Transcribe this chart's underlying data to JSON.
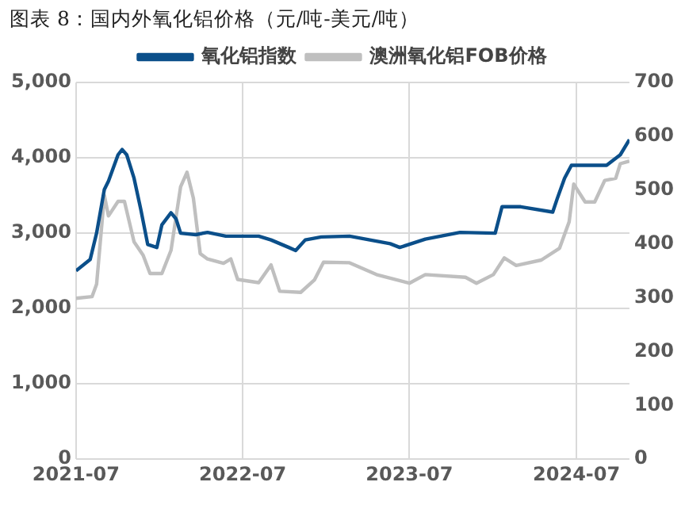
{
  "chart_data": {
    "type": "line",
    "title": "图表 8：国内外氧化铝价格（元/吨-美元/吨）",
    "series": [
      {
        "name": "氧化铝指数",
        "color": "#0b4f8a",
        "x": [
          "2021-07-01",
          "2021-08-01",
          "2021-08-15",
          "2021-09-01",
          "2021-09-10",
          "2021-10-01",
          "2021-10-10",
          "2021-10-20",
          "2021-11-05",
          "2021-11-20",
          "2021-12-05",
          "2021-12-25",
          "2022-01-05",
          "2022-01-25",
          "2022-02-05",
          "2022-02-15",
          "2022-03-20",
          "2022-04-15",
          "2022-05-25",
          "2022-08-05",
          "2022-09-01",
          "2022-10-10",
          "2022-10-25",
          "2022-11-15",
          "2022-12-20",
          "2023-02-20",
          "2023-05-20",
          "2023-06-10",
          "2023-08-05",
          "2023-10-20",
          "2024-01-05",
          "2024-01-20",
          "2024-03-01",
          "2024-05-10",
          "2024-05-20",
          "2024-06-05",
          "2024-06-20",
          "2024-09-05",
          "2024-10-05",
          "2024-10-25"
        ],
        "values": [
          2500,
          2650,
          3000,
          3580,
          3690,
          4040,
          4110,
          4040,
          3730,
          3310,
          2850,
          2810,
          3110,
          3270,
          3190,
          3000,
          2980,
          3010,
          2960,
          2960,
          2910,
          2810,
          2770,
          2910,
          2950,
          2960,
          2860,
          2810,
          2920,
          3010,
          3000,
          3350,
          3350,
          3280,
          3460,
          3730,
          3900,
          3900,
          4040,
          4240
        ]
      },
      {
        "name": "澳洲氧化铝FOB价格",
        "color": "#bfbfbf",
        "axis": "y2",
        "x": [
          "2021-07-01",
          "2021-08-05",
          "2021-08-15",
          "2021-09-01",
          "2021-09-10",
          "2021-10-01",
          "2021-10-15",
          "2021-11-05",
          "2021-11-25",
          "2021-12-10",
          "2022-01-05",
          "2022-01-25",
          "2022-02-15",
          "2022-03-01",
          "2022-03-15",
          "2022-03-30",
          "2022-04-15",
          "2022-05-20",
          "2022-06-05",
          "2022-06-20",
          "2022-08-05",
          "2022-09-01",
          "2022-09-20",
          "2022-11-05",
          "2022-12-05",
          "2022-12-25",
          "2023-02-20",
          "2023-04-20",
          "2023-07-01",
          "2023-08-05",
          "2023-11-01",
          "2023-11-25",
          "2024-01-01",
          "2024-01-25",
          "2024-02-20",
          "2024-04-15",
          "2024-05-25",
          "2024-06-15",
          "2024-06-25",
          "2024-07-20",
          "2024-08-10",
          "2024-09-01",
          "2024-09-25",
          "2024-10-05",
          "2024-10-25"
        ],
        "values": [
          299,
          302,
          325,
          490,
          452,
          479,
          479,
          404,
          379,
          345,
          345,
          388,
          506,
          533,
          485,
          382,
          372,
          364,
          372,
          334,
          328,
          361,
          312,
          310,
          333,
          366,
          365,
          343,
          327,
          343,
          338,
          327,
          343,
          374,
          360,
          370,
          392,
          441,
          511,
          478,
          478,
          518,
          522,
          549,
          554
        ]
      }
    ],
    "xlim": [
      "2021-07-01",
      "2024-10-25"
    ],
    "xticks": [
      {
        "value": "2021-07-01",
        "label": "2021-07"
      },
      {
        "value": "2022-07-01",
        "label": "2022-07"
      },
      {
        "value": "2023-07-01",
        "label": "2023-07"
      },
      {
        "value": "2024-07-01",
        "label": "2024-07"
      }
    ],
    "ylim": [
      0,
      5000
    ],
    "yticks": [
      {
        "value": 0,
        "label": "0"
      },
      {
        "value": 1000,
        "label": "1,000"
      },
      {
        "value": 2000,
        "label": "2,000"
      },
      {
        "value": 3000,
        "label": "3,000"
      },
      {
        "value": 4000,
        "label": "4,000"
      },
      {
        "value": 5000,
        "label": "5,000"
      }
    ],
    "y2lim": [
      0,
      700
    ],
    "y2ticks": [
      0,
      100,
      200,
      300,
      400,
      500,
      600,
      700
    ],
    "grid": true,
    "legend": "top",
    "marker": "none",
    "line_style": "solid"
  }
}
